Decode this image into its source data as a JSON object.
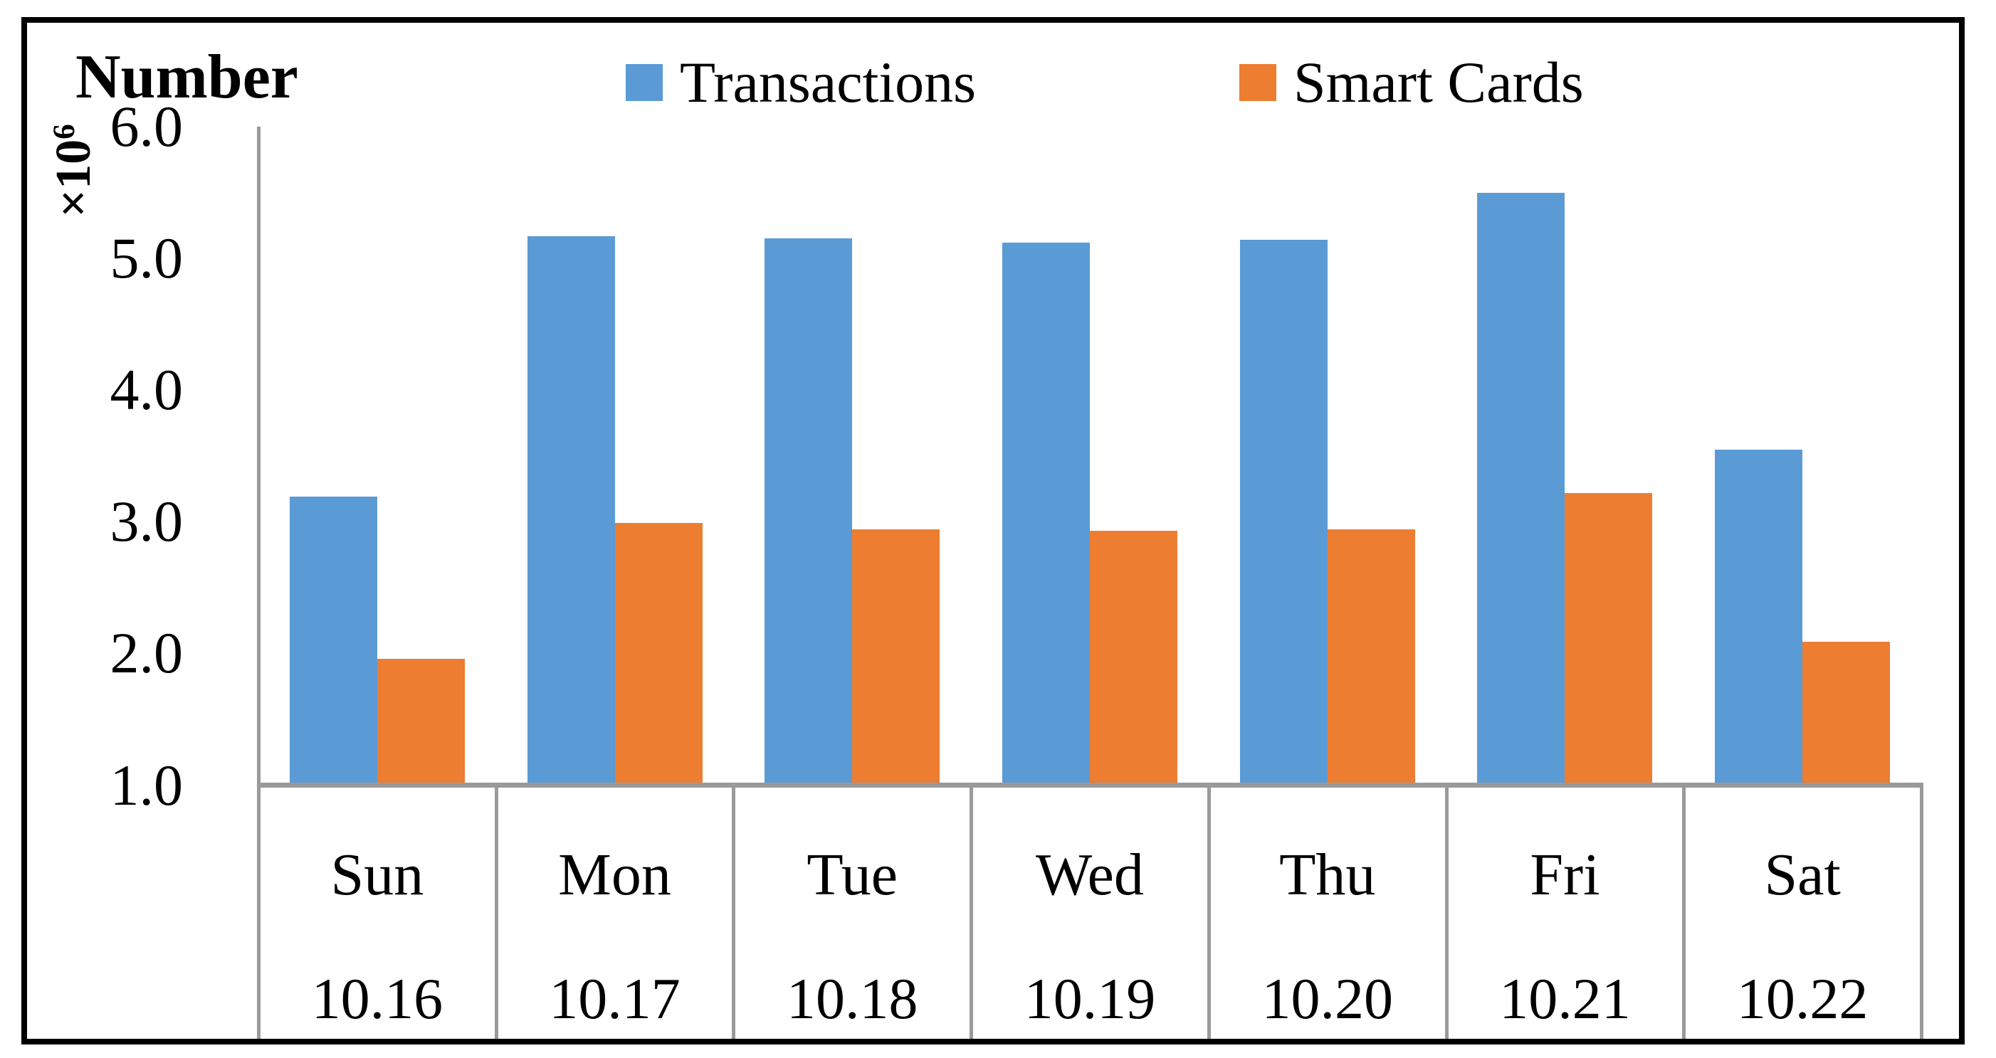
{
  "figure": {
    "title": "Number",
    "multiplier_base": "×10",
    "multiplier_exp": "6"
  },
  "chart_data": {
    "type": "bar",
    "title": "Number",
    "unit_label": "×10^6",
    "categories": [
      "Sun",
      "Mon",
      "Tue",
      "Wed",
      "Thu",
      "Fri",
      "Sat"
    ],
    "dates": [
      "10.16",
      "10.17",
      "10.18",
      "10.19",
      "10.20",
      "10.21",
      "10.22"
    ],
    "series": [
      {
        "name": "Transactions",
        "color": "#5B9BD5",
        "values": [
          3.19,
          5.17,
          5.15,
          5.12,
          5.14,
          5.5,
          3.55
        ]
      },
      {
        "name": "Smart Cards",
        "color": "#ED7D31",
        "values": [
          1.96,
          2.99,
          2.94,
          2.93,
          2.94,
          3.22,
          2.09
        ]
      }
    ],
    "ylim": [
      1.0,
      6.0
    ],
    "ytick_values": [
      6.0,
      5.0,
      4.0,
      3.0,
      2.0,
      1.0
    ],
    "ytick_labels": [
      "6.0",
      "5.0",
      "4.0",
      "3.0",
      "2.0",
      "1.0"
    ],
    "bar_baseline": 1.0,
    "grid": false,
    "legend_position": "top-center"
  }
}
